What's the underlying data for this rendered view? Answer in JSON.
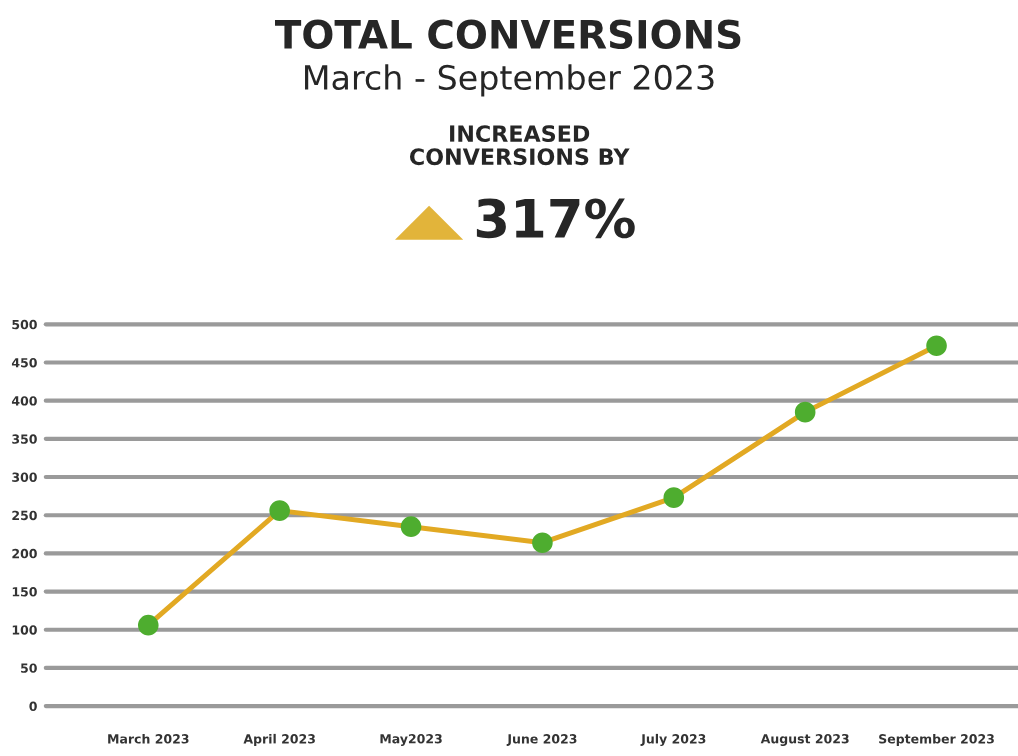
{
  "chart_data": {
    "type": "line",
    "title": "TOTAL CONVERSIONS",
    "subtitle": "March - September 2023",
    "annotations": [
      "INCREASED\nCONVERSIONS BY",
      "317%"
    ],
    "categories": [
      "March 2023",
      "April 2023",
      "May2023",
      "June 2023",
      "July 2023",
      "August 2023",
      "September 2023"
    ],
    "series": [
      {
        "color": "#e2a923",
        "colors": [
          "#4ead2f",
          "#4ead2f",
          "#4ead2f",
          "#4ead2f",
          "#4ead2f",
          "#4ead2f",
          "#4ead2f"
        ],
        "values": [
          106,
          256,
          235,
          214,
          273,
          385,
          472
        ]
      }
    ],
    "ylim": [
      0,
      500
    ],
    "yticks": [
      0,
      50,
      100,
      150,
      200,
      250,
      300,
      350,
      400,
      450,
      500
    ],
    "grid": "y",
    "marker": "circle",
    "line_style": "solid",
    "legend": false
  }
}
